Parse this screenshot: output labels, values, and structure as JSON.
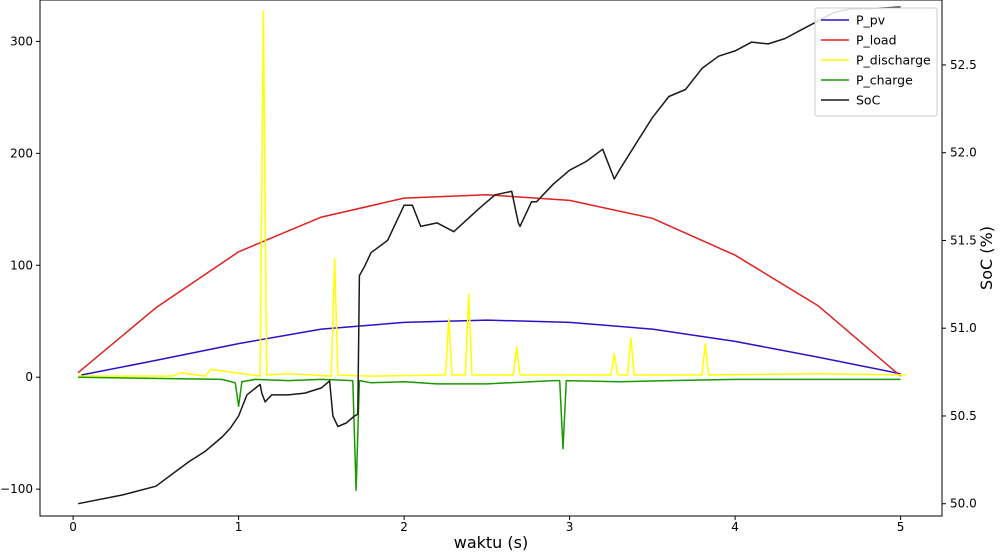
{
  "chart_data": {
    "type": "line",
    "title": "",
    "xlabel": "waktu (s)",
    "ylabel_left": "",
    "ylabel_right": "SoC (%)",
    "xlim": [
      -0.2,
      5.25
    ],
    "ylim_left": [
      -124,
      337
    ],
    "ylim_right": [
      49.93,
      52.87
    ],
    "x_ticks": [
      0,
      1,
      2,
      3,
      4,
      5
    ],
    "y_ticks_left": [
      -100,
      0,
      100,
      200,
      300
    ],
    "y_ticks_right": [
      50.0,
      50.5,
      51.0,
      51.5,
      52.0,
      52.5
    ],
    "x_tick_labels": [
      "0",
      "1",
      "2",
      "3",
      "4",
      "5"
    ],
    "y_tick_labels_left": [
      "−100",
      "0",
      "100",
      "200",
      "300"
    ],
    "y_tick_labels_right": [
      "50.0",
      "50.5",
      "51.0",
      "51.5",
      "52.0",
      "52.5"
    ],
    "grid": false,
    "legend_position": "top-right",
    "series": [
      {
        "name": "P_pv",
        "color": "#2a13c7",
        "axis": "left",
        "x": [
          0.05,
          0.5,
          1.0,
          1.5,
          2.0,
          2.5,
          3.0,
          3.5,
          4.0,
          4.5,
          5.0
        ],
        "y": [
          2,
          15,
          30,
          43,
          49,
          51,
          49,
          43,
          32,
          18,
          3
        ]
      },
      {
        "name": "P_load",
        "color": "#e02020",
        "axis": "left",
        "x": [
          0.03,
          0.5,
          1.0,
          1.5,
          2.0,
          2.5,
          3.0,
          3.5,
          4.0,
          4.5,
          5.0
        ],
        "y": [
          4,
          62,
          112,
          143,
          160,
          163,
          158,
          142,
          109,
          64,
          1
        ]
      },
      {
        "name": "P_discharge",
        "color": "#ffff00",
        "axis": "left",
        "x": [
          0.03,
          0.6,
          0.65,
          0.8,
          0.83,
          1.13,
          1.15,
          1.17,
          1.3,
          1.56,
          1.58,
          1.6,
          1.8,
          2.25,
          2.27,
          2.29,
          2.37,
          2.39,
          2.41,
          2.66,
          2.68,
          2.7,
          3.25,
          3.27,
          3.29,
          3.35,
          3.37,
          3.39,
          3.8,
          3.82,
          3.84,
          4.5,
          5.03
        ],
        "y": [
          1,
          1,
          4,
          1,
          7,
          1,
          327,
          2,
          3,
          1,
          106,
          2,
          1,
          2,
          52,
          2,
          2,
          74,
          2,
          2,
          27,
          2,
          2,
          21,
          2,
          2,
          35,
          2,
          2,
          30,
          2,
          3,
          2
        ]
      },
      {
        "name": "P_charge",
        "color": "#1a9a00",
        "axis": "left",
        "x": [
          0.03,
          0.9,
          0.98,
          1.0,
          1.02,
          1.1,
          1.3,
          1.5,
          1.69,
          1.71,
          1.73,
          1.8,
          2.0,
          2.2,
          2.5,
          2.9,
          2.94,
          2.96,
          2.98,
          3.3,
          3.6,
          4.0,
          4.5,
          5.0
        ],
        "y": [
          0,
          -2,
          -5,
          -26,
          -4,
          -2,
          -3,
          -2,
          -3,
          -101,
          -3,
          -5,
          -4,
          -6,
          -6,
          -3,
          -3,
          -64,
          -3,
          -4,
          -3,
          -2,
          -2,
          -2
        ]
      },
      {
        "name": "SoC",
        "color": "#1a1a1a",
        "axis": "right",
        "x": [
          0.03,
          0.3,
          0.5,
          0.7,
          0.8,
          0.9,
          0.95,
          1.0,
          1.05,
          1.13,
          1.14,
          1.16,
          1.2,
          1.3,
          1.4,
          1.5,
          1.55,
          1.57,
          1.6,
          1.65,
          1.7,
          1.72,
          1.73,
          1.76,
          1.8,
          1.9,
          2.0,
          2.05,
          2.1,
          2.2,
          2.3,
          2.45,
          2.55,
          2.65,
          2.69,
          2.7,
          2.77,
          2.8,
          2.9,
          3.0,
          3.1,
          3.2,
          3.27,
          3.3,
          3.4,
          3.5,
          3.6,
          3.7,
          3.8,
          3.9,
          4.0,
          4.1,
          4.2,
          4.3,
          4.4,
          4.5,
          4.6,
          4.7,
          4.8,
          5.0
        ],
        "y": [
          50.0,
          50.05,
          50.1,
          50.24,
          50.3,
          50.38,
          50.43,
          50.5,
          50.62,
          50.68,
          50.63,
          50.58,
          50.62,
          50.62,
          50.63,
          50.66,
          50.7,
          50.5,
          50.44,
          50.46,
          50.5,
          50.51,
          51.3,
          51.35,
          51.43,
          51.5,
          51.7,
          51.7,
          51.58,
          51.6,
          51.55,
          51.68,
          51.76,
          51.78,
          51.6,
          51.58,
          51.72,
          51.72,
          51.82,
          51.9,
          51.95,
          52.02,
          51.85,
          51.9,
          52.05,
          52.2,
          52.32,
          52.36,
          52.48,
          52.55,
          52.58,
          52.63,
          52.62,
          52.65,
          52.7,
          52.75,
          52.8,
          52.82,
          52.82,
          52.83
        ]
      }
    ],
    "legend": [
      {
        "name": "P_pv",
        "color": "#2a13c7"
      },
      {
        "name": "P_load",
        "color": "#e02020"
      },
      {
        "name": "P_discharge",
        "color": "#ffff00"
      },
      {
        "name": "P_charge",
        "color": "#1a9a00"
      },
      {
        "name": "SoC",
        "color": "#1a1a1a"
      }
    ]
  }
}
